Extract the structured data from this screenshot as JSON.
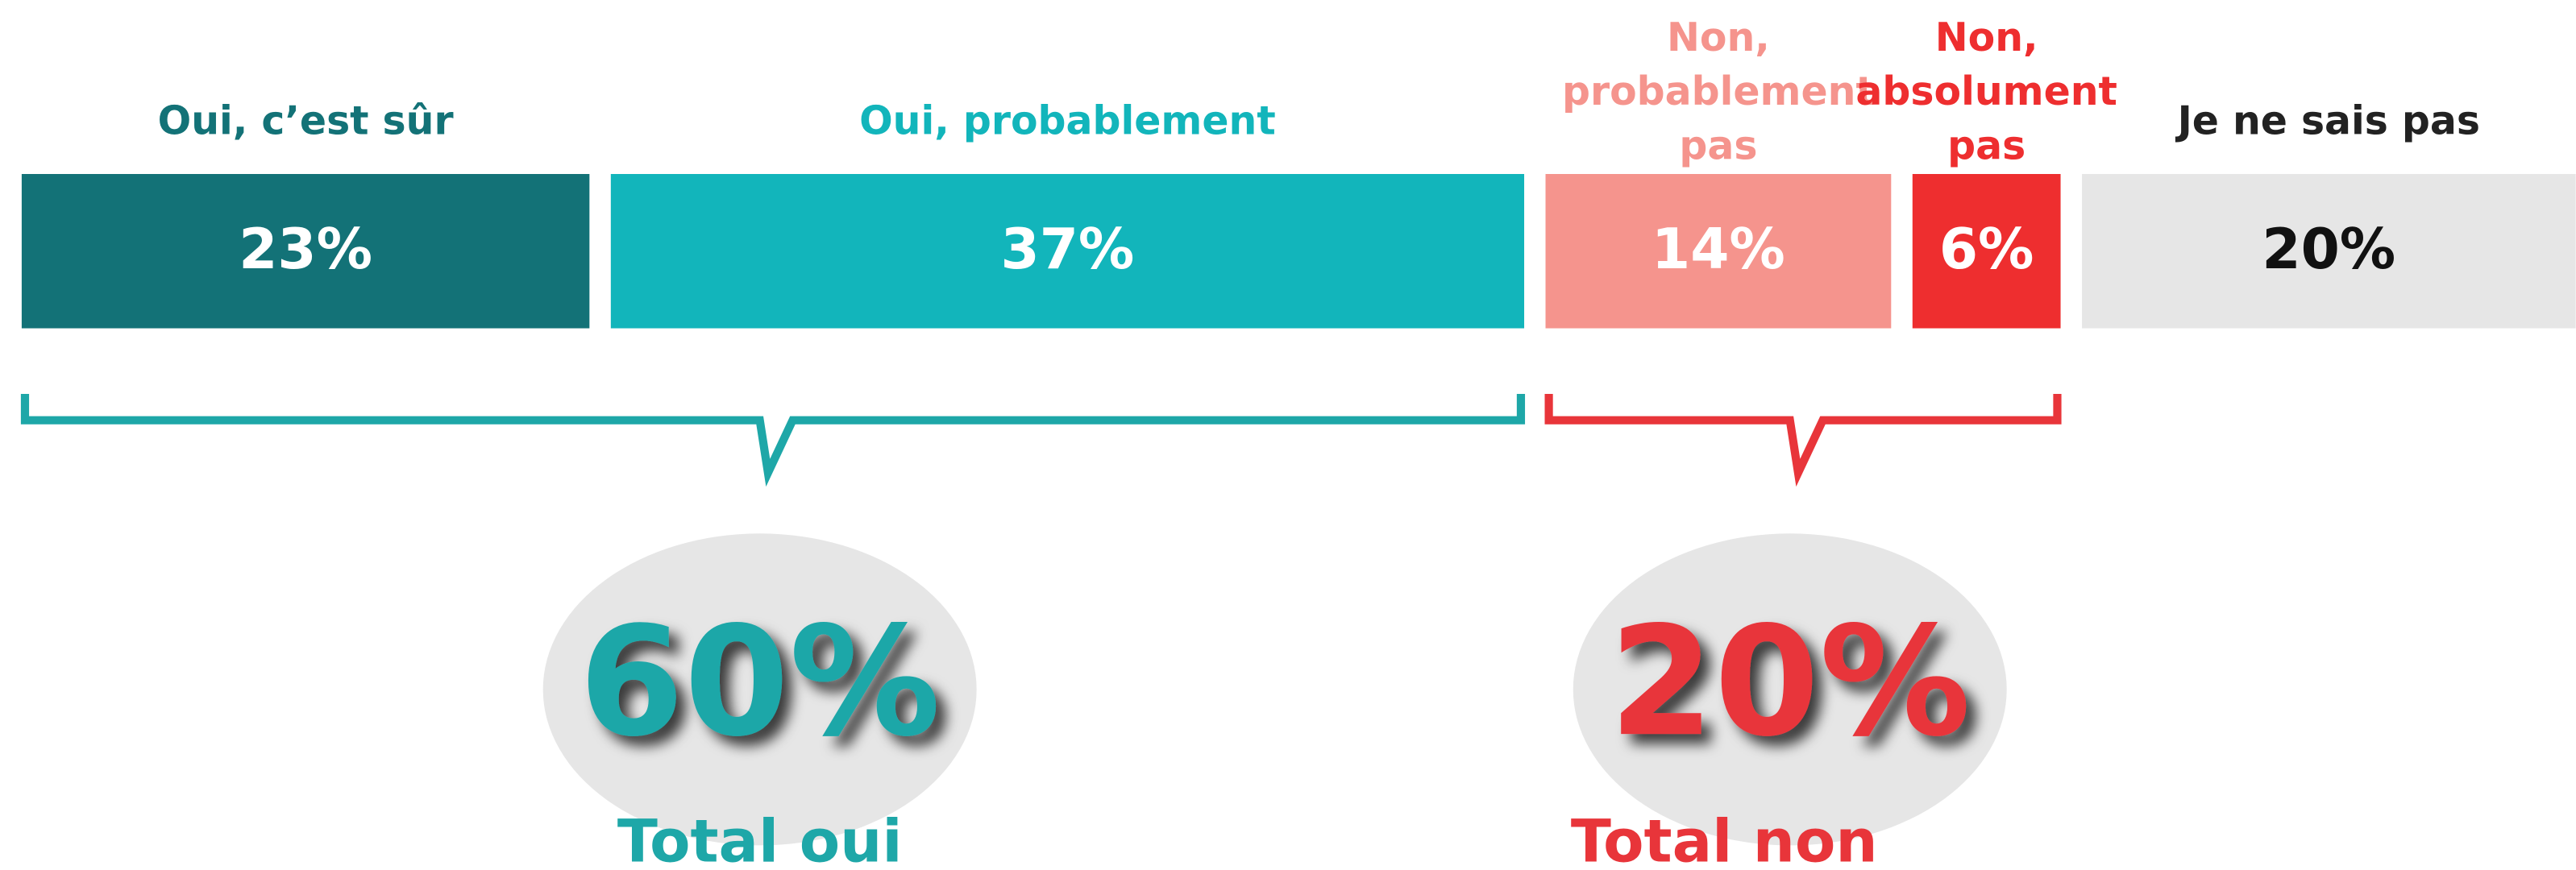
{
  "chart_data": {
    "type": "bar",
    "categories": [
      "Oui, c’est sûr",
      "Oui, probablement",
      "Non, probablement pas",
      "Non, absolument pas",
      "Je ne sais pas"
    ],
    "values": [
      23,
      37,
      14,
      6,
      20
    ],
    "value_labels": [
      "23%",
      "37%",
      "14%",
      "6%",
      "20%"
    ],
    "colors": [
      "#137277",
      "#12b5bb",
      "#f5948d",
      "#ee2e2f",
      "#e6e6e6"
    ],
    "groups": [
      {
        "label": "Total oui",
        "value": 60,
        "value_label": "60%",
        "color": "#1ea7a8"
      },
      {
        "label": "Total non",
        "value": 20,
        "value_label": "20%",
        "color": "#e8353a"
      }
    ]
  }
}
